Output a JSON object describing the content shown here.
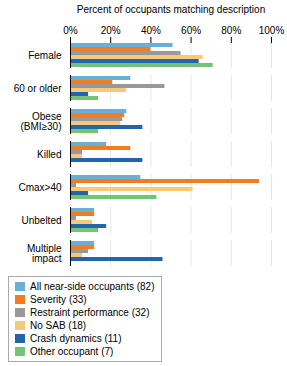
{
  "chart_data": {
    "type": "bar",
    "orientation": "horizontal",
    "categories": [
      "Female",
      "60 or older",
      "Obese\n(BMI≥30)",
      "Killed",
      "Cmax>40",
      "Unbelted",
      "Multiple\nimpact"
    ],
    "series": [
      {
        "name": "All near-side occupants (82)",
        "color": "#6baed6",
        "values": [
          51,
          30,
          28,
          18,
          35,
          12,
          12
        ]
      },
      {
        "name": "Severity (33)",
        "color": "#f47c20",
        "values": [
          40,
          21,
          27,
          30,
          94,
          12,
          12
        ]
      },
      {
        "name": "Restraint performance (32)",
        "color": "#999999",
        "values": [
          55,
          47,
          26,
          6,
          3,
          3,
          9
        ]
      },
      {
        "name": "No SAB (18)",
        "color": "#f5c97a",
        "values": [
          66,
          28,
          25,
          6,
          61,
          11,
          6
        ]
      },
      {
        "name": "Crash dynamics (11)",
        "color": "#2166ac",
        "values": [
          64,
          9,
          36,
          36,
          9,
          18,
          46
        ]
      },
      {
        "name": "Other occupant (7)",
        "color": "#74c476",
        "values": [
          71,
          14,
          14,
          0,
          43,
          14,
          0
        ]
      }
    ],
    "xlabel": "Percent of occupants matching description",
    "xlim": [
      0,
      100
    ],
    "xticks": [
      {
        "value": 0,
        "label": "0%"
      },
      {
        "value": 20,
        "label": "20%"
      },
      {
        "value": 40,
        "label": "40%"
      },
      {
        "value": 60,
        "label": "60%"
      },
      {
        "value": 80,
        "label": "80%"
      },
      {
        "value": 100,
        "label": "100%"
      }
    ],
    "grid": true,
    "legend": "bottom"
  }
}
